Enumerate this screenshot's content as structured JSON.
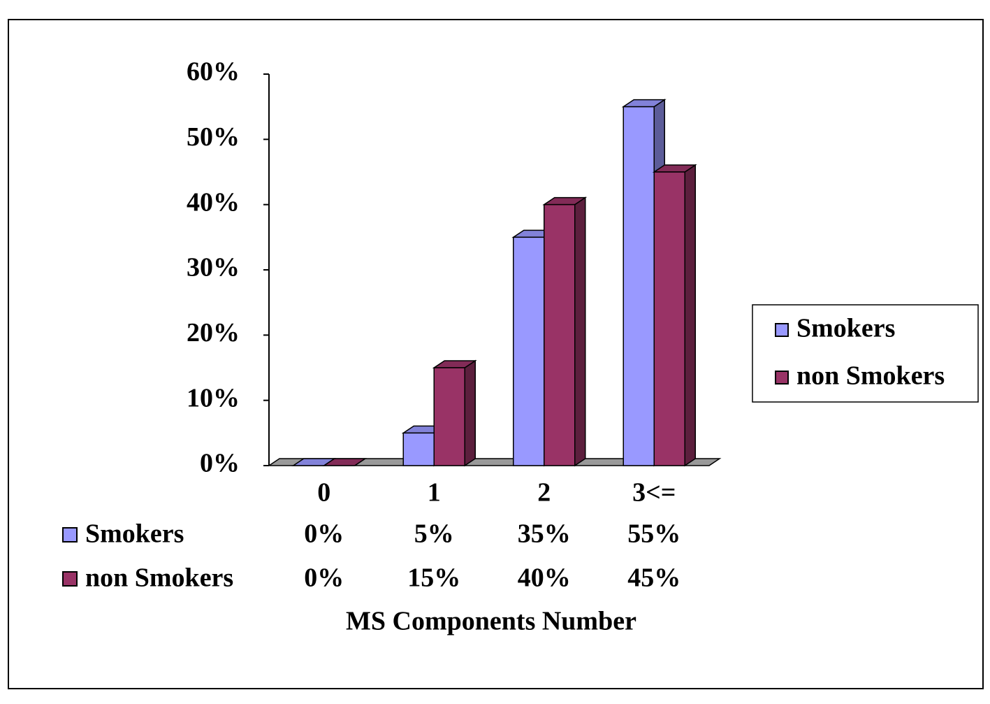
{
  "chart_data": {
    "type": "bar3d",
    "x_label": "MS Components Number",
    "categories": [
      "0",
      "1",
      "2",
      "3<="
    ],
    "series": [
      {
        "name": "Smokers",
        "color": "#9999ff",
        "values": [
          0,
          5,
          35,
          55
        ],
        "value_labels": [
          "0%",
          "5%",
          "35%",
          "55%"
        ]
      },
      {
        "name": "non Smokers",
        "color": "#993366",
        "values": [
          0,
          15,
          40,
          45
        ],
        "value_labels": [
          "0%",
          "15%",
          "40%",
          "45%"
        ]
      }
    ],
    "ylim": [
      0,
      60
    ],
    "yticks": [
      {
        "value": 0,
        "label": "0%"
      },
      {
        "value": 10,
        "label": "10%"
      },
      {
        "value": 20,
        "label": "20%"
      },
      {
        "value": 30,
        "label": "30%"
      },
      {
        "value": 40,
        "label": "40%"
      },
      {
        "value": 50,
        "label": "50%"
      },
      {
        "value": 60,
        "label": "60%"
      }
    ],
    "legend": "right",
    "data_table": true
  }
}
